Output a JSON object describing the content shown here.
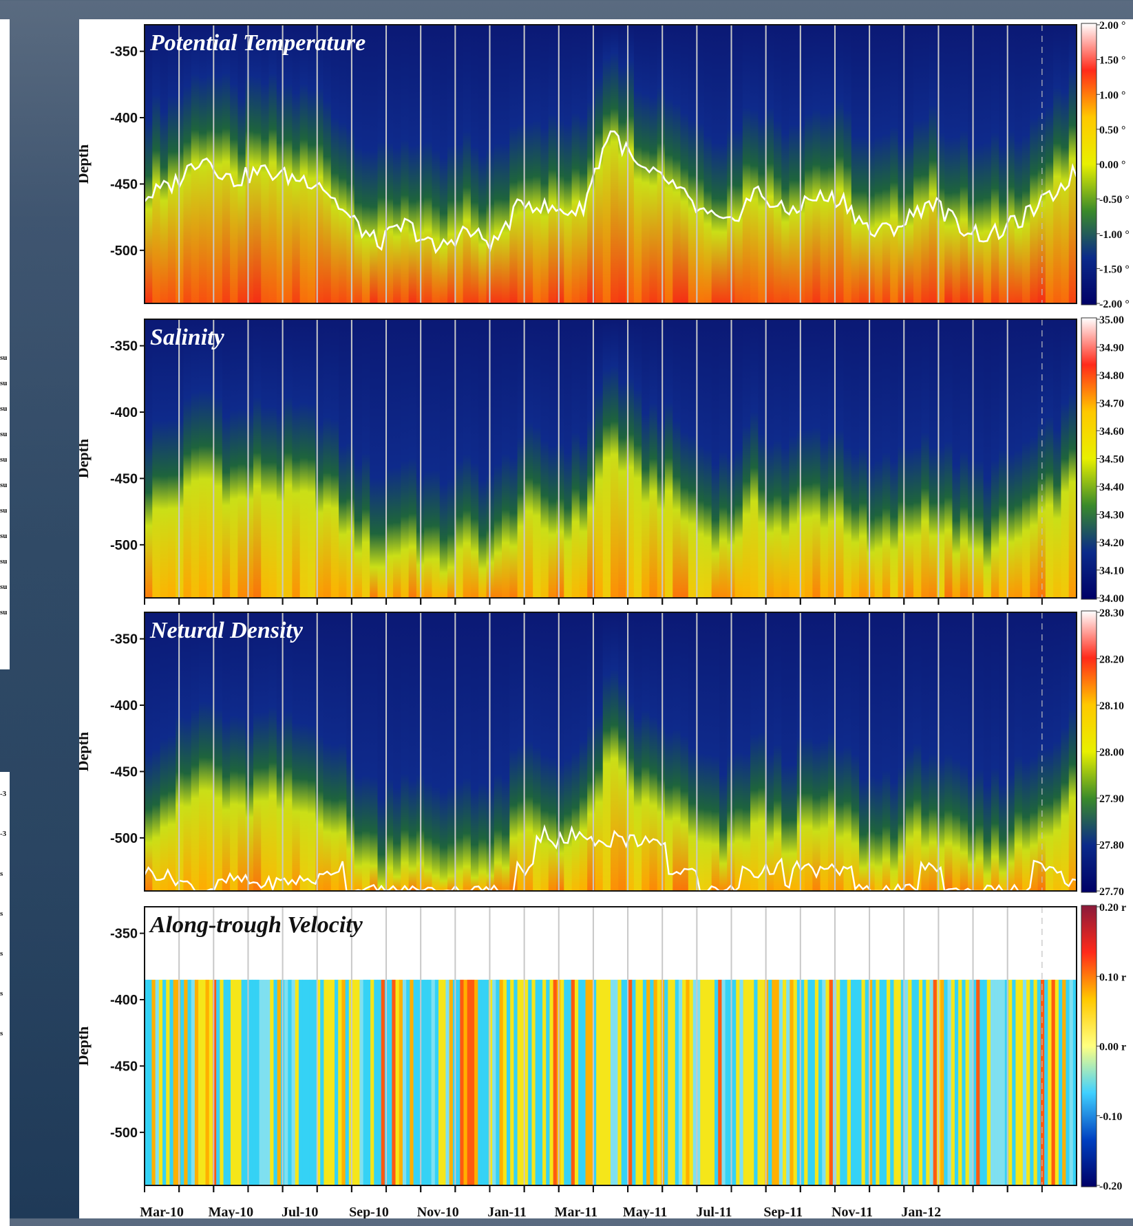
{
  "chart_data": [
    {
      "type": "heatmap",
      "title": "Potential Temperature",
      "ylabel": "Depth",
      "ylim": [
        -540,
        -330
      ],
      "yticks": [
        "-350",
        "-400",
        "-450",
        "-500"
      ],
      "x_tick_labels": [
        "Mar-10",
        "May-10",
        "Jul-10",
        "Sep-10",
        "Nov-10",
        "Jan-11",
        "Mar-11",
        "May-11",
        "Jul-11",
        "Sep-11",
        "Nov-11",
        "Jan-12"
      ],
      "colorbar": {
        "range": [
          -2.0,
          2.0
        ],
        "labels": [
          "2.00 °",
          "1.50 °",
          "1.00 °",
          "0.50 °",
          "0.00 °",
          "-0.50 °",
          "-1.00 °",
          "-1.50 °",
          "-2.00 °"
        ],
        "colors": [
          "#ffffff",
          "#ff2a1a",
          "#ffc800",
          "#e8f000",
          "#3a8a2a",
          "#0a2a8a",
          "#000066"
        ]
      },
      "contour_depth_series": [
        -460,
        -450,
        -428,
        -448,
        -440,
        -445,
        -448,
        -475,
        -495,
        -480,
        -500,
        -485,
        -495,
        -462,
        -470,
        -470,
        -408,
        -440,
        -448,
        -470,
        -482,
        -455,
        -472,
        -460,
        -462,
        -488,
        -480,
        -462,
        -482,
        -490,
        -478,
        -462,
        -440
      ]
    },
    {
      "type": "heatmap",
      "title": "Salinity",
      "ylabel": "Depth",
      "ylim": [
        -540,
        -330
      ],
      "yticks": [
        "-350",
        "-400",
        "-450",
        "-500"
      ],
      "x_tick_labels": [
        "Mar-10",
        "May-10",
        "Jul-10",
        "Sep-10",
        "Nov-10",
        "Jan-11",
        "Mar-11",
        "May-11",
        "Jul-11",
        "Sep-11",
        "Nov-11",
        "Jan-12"
      ],
      "colorbar": {
        "range": [
          34.0,
          35.0
        ],
        "labels": [
          "35.00",
          "34.90",
          "34.80",
          "34.70",
          "34.60",
          "34.50",
          "34.40",
          "34.30",
          "34.20",
          "34.10",
          "34.00"
        ],
        "colors": [
          "#ffffff",
          "#ff2a1a",
          "#ffc800",
          "#e8f000",
          "#3a8a2a",
          "#0a2a8a",
          "#000066"
        ]
      }
    },
    {
      "type": "heatmap",
      "title": "Netural Density",
      "ylabel": "Depth",
      "ylim": [
        -540,
        -330
      ],
      "yticks": [
        "-350",
        "-400",
        "-450",
        "-500"
      ],
      "x_tick_labels": [
        "Mar-10",
        "May-10",
        "Jul-10",
        "Sep-10",
        "Nov-10",
        "Jan-11",
        "Mar-11",
        "May-11",
        "Jul-11",
        "Sep-11",
        "Nov-11",
        "Jan-12"
      ],
      "colorbar": {
        "range": [
          27.7,
          28.3
        ],
        "labels": [
          "28.30",
          "28.20",
          "28.10",
          "28.00",
          "27.90",
          "27.80",
          "27.70"
        ],
        "colors": [
          "#ffffff",
          "#ff2a1a",
          "#ffc800",
          "#e8f000",
          "#3a8a2a",
          "#0a2a8a",
          "#000066"
        ]
      }
    },
    {
      "type": "heatmap",
      "title": "Along-trough Velocity",
      "ylabel": "Depth",
      "ylim": [
        -540,
        -330
      ],
      "yticks": [
        "-350",
        "-400",
        "-450",
        "-500"
      ],
      "x_tick_labels": [
        "Mar-10",
        "May-10",
        "Jul-10",
        "Sep-10",
        "Nov-10",
        "Jan-11",
        "Mar-11",
        "May-11",
        "Jul-11",
        "Sep-11",
        "Nov-11",
        "Jan-12"
      ],
      "data_top_depth": -385,
      "colorbar": {
        "range": [
          -0.2,
          0.2
        ],
        "labels": [
          "0.20 r",
          "0.10 r",
          "0.00 r",
          "-0.10",
          "-0.20"
        ],
        "colors": [
          "#8a1a3a",
          "#ff2a1a",
          "#ffc800",
          "#ffff80",
          "#40d0ff",
          "#0040c0",
          "#000066"
        ]
      }
    }
  ],
  "background": {
    "stub_labels_top": [
      "su",
      "su",
      "su",
      "su",
      "su",
      "su",
      "su",
      "su",
      "su",
      "su",
      "su"
    ],
    "stub_labels_bottom": [
      "-3",
      "-3",
      "s",
      "s",
      "s",
      "s",
      "s"
    ]
  }
}
